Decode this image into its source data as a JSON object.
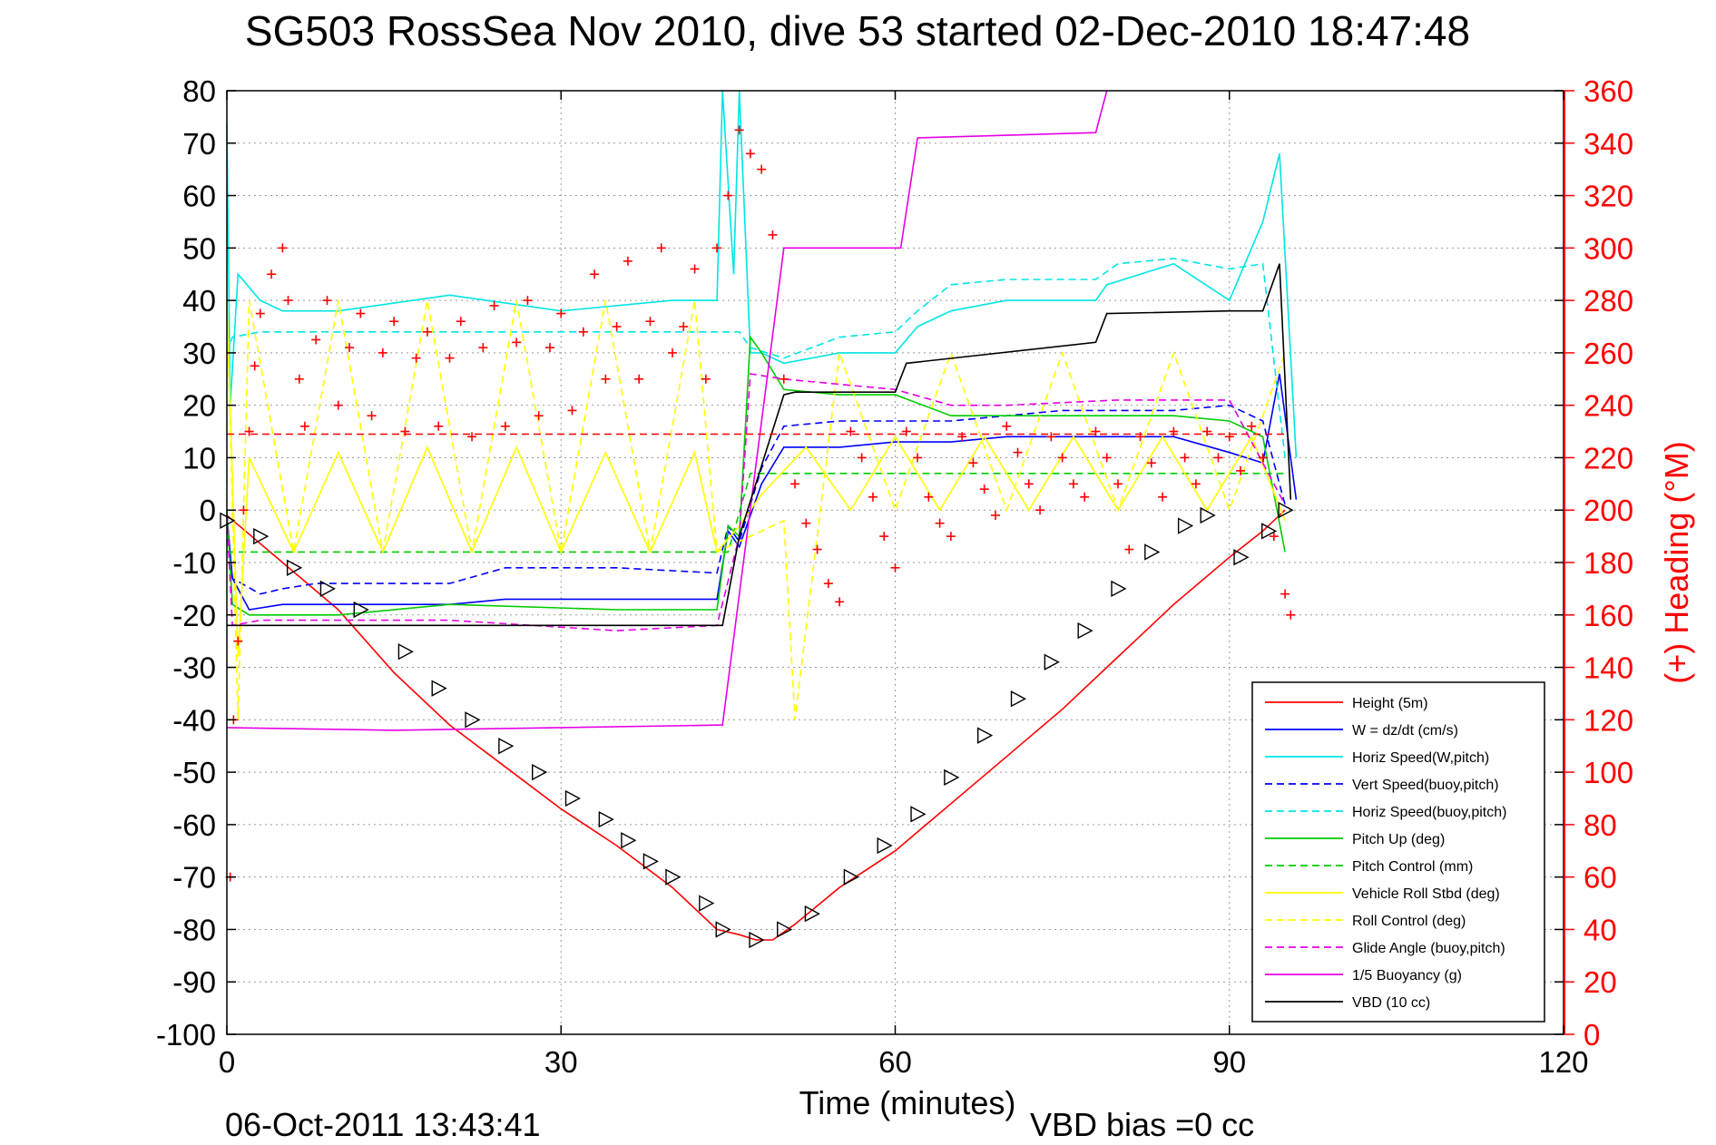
{
  "chart_data": {
    "type": "line",
    "title": "SG503 RossSea Nov 2010, dive 53 started 02-Dec-2010 18:47:48",
    "xlabel": "Time (minutes)",
    "ylabel_right": "(+) Heading (°M)",
    "xlim": [
      0,
      120
    ],
    "ylim": [
      -100,
      80
    ],
    "ylim_right": [
      0,
      360
    ],
    "x_ticks": [
      0,
      30,
      60,
      90,
      120
    ],
    "y_ticks": [
      80,
      70,
      60,
      50,
      40,
      30,
      20,
      10,
      0,
      -10,
      -20,
      -30,
      -40,
      -50,
      -60,
      -70,
      -80,
      -90,
      -100
    ],
    "y_right_ticks": [
      360,
      340,
      320,
      300,
      280,
      260,
      240,
      220,
      200,
      180,
      160,
      140,
      120,
      100,
      80,
      60,
      40,
      20,
      0
    ],
    "grid": true,
    "legend_position": "bottom-right",
    "footer_timestamp": "06-Oct-2011 13:43:41",
    "footer_note": "VBD bias =0 cc",
    "series": [
      {
        "name": "Height (5m)",
        "color": "#ff0000",
        "style": "solid",
        "x": [
          0,
          5,
          10,
          15,
          20,
          25,
          30,
          35,
          40,
          44,
          46,
          47.5,
          49,
          51,
          55,
          60,
          65,
          70,
          75,
          80,
          85,
          90,
          93,
          95
        ],
        "y": [
          -1,
          -10,
          -19,
          -31,
          -41,
          -49,
          -57,
          -64,
          -72,
          -80,
          -81,
          -82,
          -82,
          -79,
          -72,
          -65,
          -56,
          -47,
          -38,
          -28,
          -18,
          -9,
          -4,
          0
        ]
      },
      {
        "name": "W = dz/dt (cm/s)",
        "color": "#0000ff",
        "style": "solid",
        "x": [
          0,
          0.5,
          2,
          5,
          10,
          20,
          25,
          35,
          44,
          45,
          46,
          48,
          50,
          55,
          60,
          65,
          70,
          75,
          80,
          85,
          90,
          93,
          94.5,
          96
        ],
        "y": [
          -1,
          -13,
          -19,
          -18,
          -18,
          -18,
          -17,
          -17,
          -17,
          -4,
          -7,
          5,
          12,
          12,
          13,
          13,
          14,
          14,
          14,
          14,
          11,
          9,
          26,
          2
        ]
      },
      {
        "name": "Horiz Speed(W,pitch)",
        "color": "#00e5e5",
        "style": "solid",
        "x": [
          0,
          0.3,
          1,
          3,
          5,
          10,
          20,
          30,
          40,
          44,
          44.5,
          45.5,
          46,
          47,
          48,
          50,
          55,
          60,
          62,
          65,
          70,
          78,
          79,
          85,
          90,
          93,
          94.5,
          96
        ],
        "y": [
          74,
          20,
          45,
          40,
          38,
          38,
          41,
          38,
          40,
          40,
          80,
          45,
          80,
          30,
          30,
          28,
          30,
          30,
          35,
          38,
          40,
          40,
          43,
          47,
          40,
          55,
          68,
          10
        ]
      },
      {
        "name": "Vert Speed(buoy,pitch)",
        "color": "#0000ff",
        "style": "dashed",
        "x": [
          0,
          0.5,
          3,
          5,
          8,
          20,
          25,
          35,
          44,
          45,
          46,
          48,
          50,
          55,
          60,
          65,
          70,
          75,
          80,
          85,
          90,
          93,
          95
        ],
        "y": [
          -1,
          -13,
          -16,
          -15,
          -14,
          -14,
          -11,
          -11,
          -12,
          -3,
          -6,
          8,
          16,
          17,
          17,
          17,
          18,
          19,
          19,
          19,
          20,
          17,
          1
        ]
      },
      {
        "name": "Horiz Speed(buoy,pitch)",
        "color": "#00e5e5",
        "style": "dashed",
        "x": [
          0,
          0.5,
          3,
          20,
          40,
          44,
          46,
          47,
          50,
          55,
          60,
          62,
          65,
          70,
          78,
          80,
          85,
          90,
          93,
          95
        ],
        "y": [
          30,
          33,
          34,
          34,
          34,
          34,
          34,
          31,
          29,
          33,
          34,
          38,
          43,
          44,
          44,
          47,
          48,
          46,
          47,
          10
        ]
      },
      {
        "name": "Pitch Up (deg)",
        "color": "#00cc00",
        "style": "solid",
        "x": [
          0,
          0.5,
          2,
          5,
          10,
          20,
          35,
          44,
          45,
          46,
          47,
          48,
          50,
          55,
          60,
          65,
          70,
          75,
          80,
          85,
          90,
          93,
          95
        ],
        "y": [
          0,
          -18,
          -20,
          -20,
          -20,
          -18,
          -19,
          -19,
          -3,
          -5,
          33,
          30,
          23,
          22,
          22,
          18,
          18,
          18,
          18,
          18,
          17,
          14,
          -8
        ]
      },
      {
        "name": "Pitch Control (mm)",
        "color": "#00cc00",
        "style": "dashed",
        "x": [
          0,
          1,
          44,
          45,
          47,
          60,
          80,
          95
        ],
        "y": [
          -8,
          -8,
          -8,
          -8,
          7,
          7,
          7,
          7
        ]
      },
      {
        "name": "Vehicle Roll Stbd (deg)",
        "color": "#ffff00",
        "style": "solid",
        "x": [
          0,
          1,
          2,
          6,
          10,
          14,
          18,
          22,
          26,
          30,
          34,
          38,
          42,
          44,
          46,
          48,
          52,
          56,
          60,
          64,
          68,
          72,
          76,
          80,
          84,
          88,
          92,
          95
        ],
        "y": [
          40,
          -28,
          10,
          -8,
          11,
          -8,
          12,
          -8,
          12,
          -8,
          11,
          -8,
          11,
          -8,
          -3,
          3,
          12,
          0,
          14,
          0,
          14,
          0,
          14,
          0,
          14,
          0,
          14,
          -2
        ]
      },
      {
        "name": "Roll Control (deg)",
        "color": "#ffff00",
        "style": "dashed",
        "x": [
          0,
          1,
          2,
          6,
          10,
          14,
          18,
          22,
          26,
          30,
          34,
          38,
          42,
          44,
          50,
          51,
          55,
          60,
          65,
          70,
          75,
          80,
          85,
          90,
          95
        ],
        "y": [
          40,
          -40,
          40,
          -8,
          40,
          -8,
          40,
          -8,
          40,
          -8,
          40,
          -8,
          40,
          -8,
          -2,
          -40,
          30,
          0,
          30,
          0,
          30,
          0,
          30,
          0,
          30
        ]
      },
      {
        "name": "Glide Angle (buoy,pitch)",
        "color": "#e600e6",
        "style": "dashed",
        "x": [
          0,
          0.5,
          3,
          20,
          35,
          44,
          46,
          47,
          50,
          60,
          65,
          70,
          80,
          90,
          95
        ],
        "y": [
          -1,
          -22,
          -21,
          -21,
          -23,
          -22,
          -5,
          26,
          25,
          23,
          20,
          20,
          21,
          21,
          1
        ]
      },
      {
        "name": "1/5 Buoyancy (g)",
        "color": "#e600e6",
        "style": "solid",
        "x": [
          0,
          15,
          44.5,
          50,
          60.5,
          62,
          78,
          79
        ],
        "y": [
          -41.5,
          -42,
          -41,
          50,
          50,
          71,
          72,
          80
        ]
      },
      {
        "name": "VBD (10 cc)",
        "color": "#000000",
        "style": "solid",
        "x": [
          0,
          44.5,
          46,
          50,
          51,
          60,
          61,
          78,
          79,
          90,
          93,
          94.5,
          95.5
        ],
        "y": [
          -22,
          -22,
          -5,
          22,
          22.5,
          22.5,
          28,
          32,
          37.5,
          38,
          38,
          47,
          2
        ]
      }
    ],
    "heading_points": {
      "name": "(+) Heading (°M)",
      "color": "#ff0000",
      "marker": "plus",
      "x": [
        0.3,
        0.6,
        1,
        1.5,
        2,
        2.5,
        3,
        4,
        5,
        5.5,
        6.5,
        7,
        8,
        9,
        10,
        11,
        12,
        13,
        14,
        15,
        16,
        17,
        18,
        19,
        20,
        21,
        22,
        23,
        24,
        25,
        26,
        27,
        28,
        29,
        30,
        31,
        32,
        33,
        34,
        35,
        36,
        37,
        38,
        39,
        40,
        41,
        42,
        43,
        44,
        45,
        46,
        47,
        48,
        49,
        50,
        51,
        52,
        53,
        54,
        55,
        56,
        57,
        58,
        59,
        60,
        61,
        62,
        63,
        64,
        65,
        66,
        67,
        68,
        69,
        70,
        71,
        72,
        73,
        74,
        75,
        76,
        77,
        78,
        79,
        80,
        81,
        82,
        83,
        84,
        85,
        86,
        87,
        88,
        89,
        90,
        91,
        92,
        93,
        94,
        95,
        95.5
      ],
      "y": [
        60,
        120,
        150,
        200,
        230,
        255,
        275,
        290,
        300,
        280,
        250,
        232,
        265,
        280,
        240,
        262,
        275,
        236,
        260,
        272,
        230,
        258,
        268,
        232,
        258,
        272,
        228,
        262,
        278,
        232,
        264,
        280,
        236,
        262,
        275,
        238,
        268,
        290,
        250,
        270,
        295,
        250,
        272,
        300,
        260,
        270,
        292,
        250,
        300,
        320,
        345,
        336,
        330,
        305,
        250,
        210,
        195,
        185,
        172,
        165,
        230,
        220,
        205,
        190,
        178,
        230,
        220,
        205,
        195,
        190,
        228,
        218,
        208,
        198,
        232,
        222,
        210,
        200,
        228,
        220,
        210,
        205,
        230,
        220,
        210,
        185,
        228,
        218,
        205,
        230,
        220,
        210,
        230,
        220,
        228,
        215,
        232,
        220,
        190,
        168,
        160
      ]
    },
    "dashed_reference_line": {
      "color": "#ff0000",
      "y": 14.5,
      "x": [
        0,
        95
      ]
    },
    "depth_markers": {
      "color": "#000000",
      "marker": "triangle",
      "x": [
        0,
        3,
        6,
        9,
        12,
        16,
        19,
        22,
        25,
        28,
        31,
        34,
        36,
        38,
        40,
        43,
        44.5,
        47.5,
        50,
        52.5,
        56,
        59,
        62,
        65,
        68,
        71,
        74,
        77,
        80,
        83,
        86,
        88,
        91,
        93.5,
        95
      ],
      "y": [
        -2,
        -5,
        -11,
        -15,
        -19,
        -27,
        -34,
        -40,
        -45,
        -50,
        -55,
        -59,
        -63,
        -67,
        -70,
        -75,
        -80,
        -82,
        -80,
        -77,
        -70,
        -64,
        -58,
        -51,
        -43,
        -36,
        -29,
        -23,
        -15,
        -8,
        -3,
        -1,
        -9,
        -4,
        0
      ]
    }
  }
}
